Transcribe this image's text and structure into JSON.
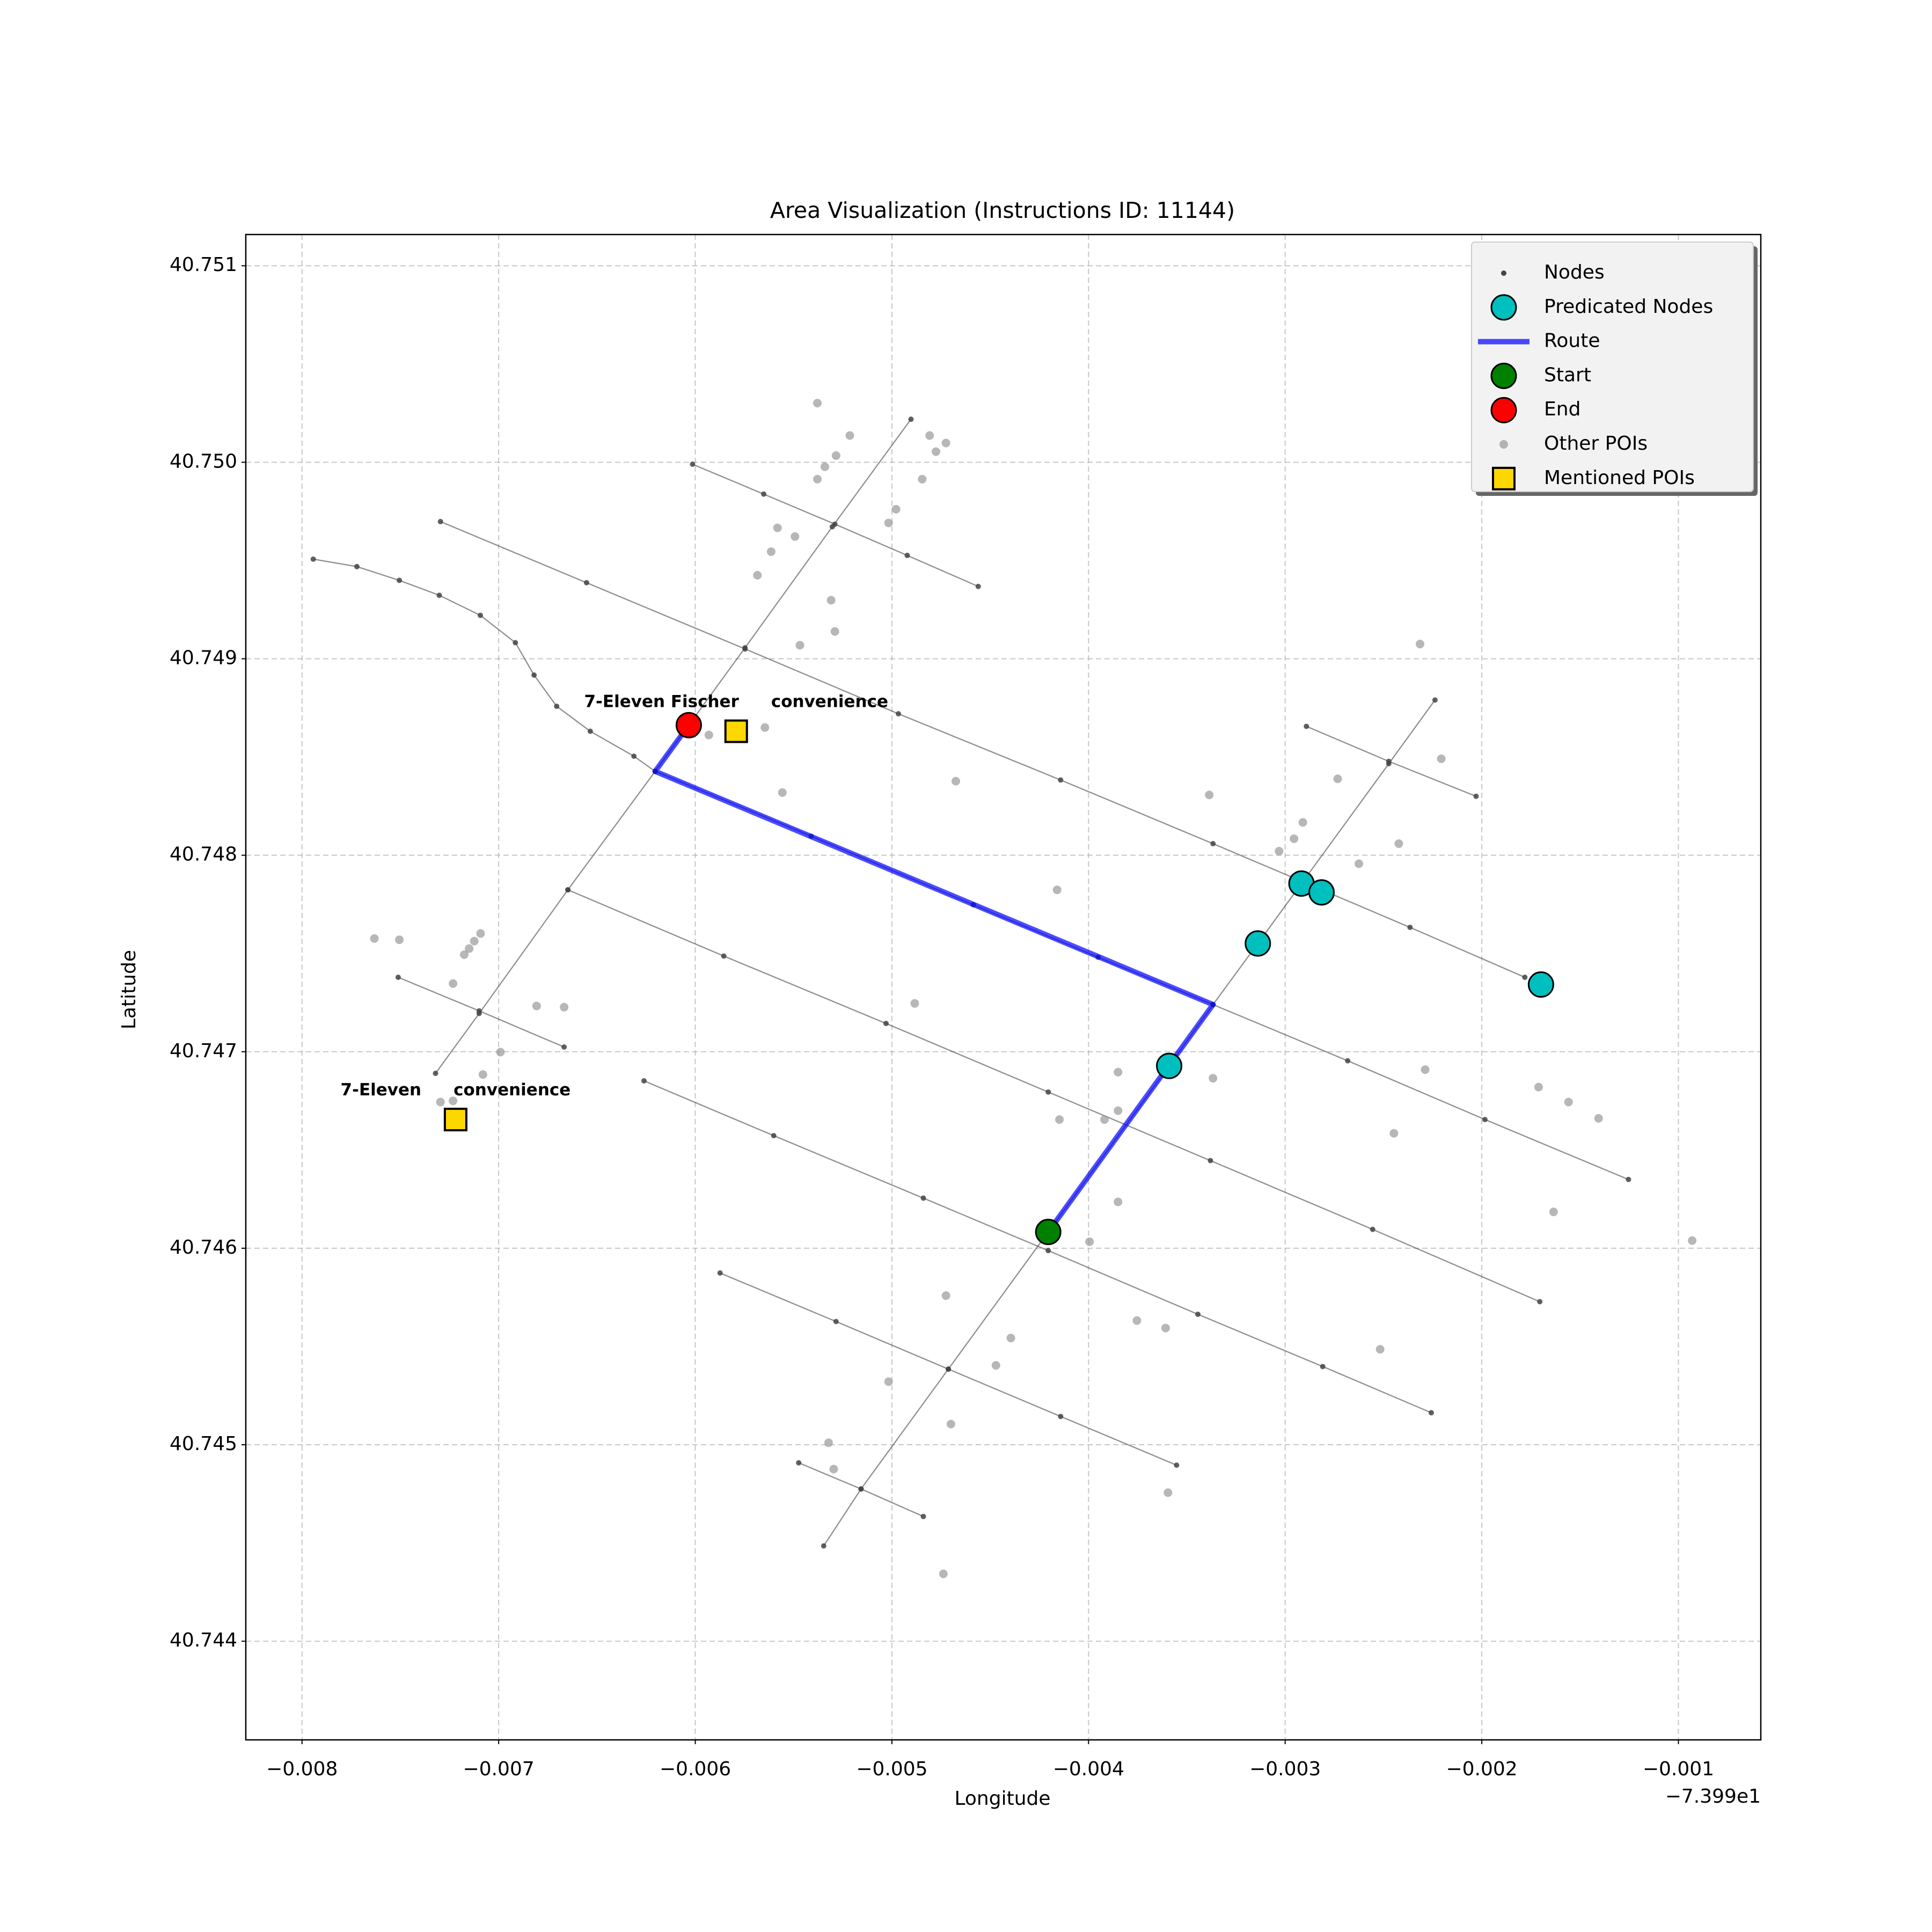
{
  "chart_data": {
    "type": "map",
    "title": "Area Visualization (Instructions ID: 11144)",
    "xlabel": "Longitude",
    "ylabel": "Latitude",
    "x_offset_label": "−7.399e1",
    "xlim": [
      -0.008286,
      -0.000581
    ],
    "ylim": [
      40.743498,
      40.751159
    ],
    "xticks": [
      {
        "value": -0.008,
        "label": "−0.008"
      },
      {
        "value": -0.007,
        "label": "−0.007"
      },
      {
        "value": -0.006,
        "label": "−0.006"
      },
      {
        "value": -0.005,
        "label": "−0.005"
      },
      {
        "value": -0.004,
        "label": "−0.004"
      },
      {
        "value": -0.003,
        "label": "−0.003"
      },
      {
        "value": -0.002,
        "label": "−0.002"
      },
      {
        "value": -0.001,
        "label": "−0.001"
      }
    ],
    "yticks": [
      40.744,
      40.745,
      40.746,
      40.747,
      40.748,
      40.749,
      {
        "value": 40.75,
        "label": "40.750"
      },
      40.751
    ],
    "grid": true,
    "legend": "upper right",
    "nodes": {
      "name": "Nodes",
      "color": "#444444",
      "streets": [
        {
          "x": [
            -0.007943,
            -0.007721,
            -0.007505,
            -0.007302,
            -0.007093,
            -0.006915,
            -0.00682,
            -0.006705,
            -0.006534,
            -0.006312,
            -0.006204
          ],
          "y": [
            40.749507,
            40.749469,
            40.749399,
            40.749323,
            40.749221,
            40.749082,
            40.748917,
            40.748758,
            40.748631,
            40.748504,
            40.748427
          ]
        },
        {
          "x": [
            -0.007321,
            -0.007099,
            -0.006648,
            -0.006204,
            -0.005747,
            -0.005303,
            -0.004903
          ],
          "y": [
            40.74689,
            40.747195,
            40.747824,
            40.748427,
            40.749056,
            40.749672,
            40.750219
          ]
        },
        {
          "x": [
            -0.005347,
            -0.005157,
            -0.004713,
            -0.004205,
            -0.00359,
            -0.003367,
            -0.003139,
            -0.002917,
            -0.002473,
            -0.002238
          ],
          "y": [
            40.744485,
            40.744775,
            40.745385,
            40.746083,
            40.746928,
            40.74724,
            40.747551,
            40.747856,
            40.748466,
            40.74879
          ]
        },
        {
          "x": [
            -0.006014,
            -0.005652,
            -0.00529,
            -0.004922,
            -0.004561
          ],
          "y": [
            40.74999,
            40.749838,
            40.749685,
            40.749526,
            40.749368
          ]
        },
        {
          "x": [
            -0.007296,
            -0.006553,
            -0.005747,
            -0.004967,
            -0.004142,
            -0.003367,
            -0.002917,
            -0.002365,
            -0.001781
          ],
          "y": [
            40.749698,
            40.749387,
            40.74905,
            40.74872,
            40.748383,
            40.748059,
            40.747868,
            40.747633,
            40.747379
          ]
        },
        {
          "x": [
            -0.007511,
            -0.007099,
            -0.006667
          ],
          "y": [
            40.747379,
            40.747208,
            40.747024
          ]
        },
        {
          "x": [
            -0.006204,
            -0.005411,
            -0.004586,
            -0.003951,
            -0.003367,
            -0.002682,
            -0.001984,
            -0.001254
          ],
          "y": [
            40.748427,
            40.748097,
            40.747748,
            40.747481,
            40.74724,
            40.746954,
            40.746655,
            40.74635
          ]
        },
        {
          "x": [
            -0.006648,
            -0.005855,
            -0.00503,
            -0.004205,
            -0.00338,
            -0.002555,
            -0.001705
          ],
          "y": [
            40.747824,
            40.747487,
            40.747144,
            40.746795,
            40.746446,
            40.746096,
            40.745728
          ]
        },
        {
          "x": [
            -0.006261,
            -0.005601,
            -0.00484,
            -0.004205,
            -0.003444,
            -0.002809,
            -0.002257
          ],
          "y": [
            40.746852,
            40.746573,
            40.746255,
            40.745988,
            40.745664,
            40.745398,
            40.745163
          ]
        },
        {
          "x": [
            -0.005874,
            -0.005284,
            -0.004713,
            -0.004142,
            -0.003552
          ],
          "y": [
            40.745874,
            40.745627,
            40.745385,
            40.745144,
            40.744896
          ]
        },
        {
          "x": [
            -0.005474,
            -0.005157,
            -0.00484
          ],
          "y": [
            40.744908,
            40.744775,
            40.744635
          ]
        },
        {
          "x": [
            -0.002892,
            -0.002473,
            -0.002029
          ],
          "y": [
            40.748656,
            40.748478,
            40.7483
          ]
        }
      ]
    },
    "predicted_nodes": {
      "name": "Predicated Nodes",
      "color": "#00bfbf",
      "x": [
        -0.00359,
        -0.003139,
        -0.002917,
        -0.002815,
        -0.001699
      ],
      "y": [
        40.746928,
        40.747551,
        40.747856,
        40.747811,
        40.747342
      ]
    },
    "route": {
      "name": "Route",
      "color": "#0000ff",
      "x": [
        -0.004205,
        -0.003367,
        -0.006204,
        -0.006033
      ],
      "y": [
        40.746083,
        40.74724,
        40.748427,
        40.748662
      ]
    },
    "start": {
      "name": "Start",
      "color": "#008000",
      "x": -0.004205,
      "y": 40.746083
    },
    "end": {
      "name": "End",
      "color": "#ff0000",
      "x": -0.006033,
      "y": 40.748662
    },
    "other_pois": {
      "name": "Other POIs",
      "color": "#999999",
      "x": [
        -0.005379,
        -0.005214,
        -0.004808,
        -0.004725,
        -0.004776,
        -0.005284,
        -0.005341,
        -0.005379,
        -0.004846,
        -0.004979,
        -0.005017,
        -0.005582,
        -0.005493,
        -0.005614,
        -0.005684,
        -0.005309,
        -0.00529,
        -0.005468,
        -0.005931,
        -0.005646,
        -0.005557,
        -0.004675,
        -0.002314,
        -0.002206,
        -0.002733,
        -0.003386,
        -0.002422,
        -0.00291,
        -0.003031,
        -0.002955,
        -0.002625,
        -0.00416,
        -0.007632,
        -0.007505,
        -0.007092,
        -0.007124,
        -0.00715,
        -0.007175,
        -0.007232,
        -0.006807,
        -0.006667,
        -0.006991,
        -0.00708,
        -0.004884,
        -0.00385,
        -0.003608,
        -0.003367,
        -0.002288,
        -0.001711,
        -0.001559,
        -0.001406,
        -0.004148,
        -0.003919,
        -0.00385,
        -0.002447,
        -0.00385,
        -0.003995,
        -0.001635,
        -0.00093,
        -0.004725,
        -0.003754,
        -0.003608,
        -0.004395,
        -0.004471,
        -0.002517,
        -0.005017,
        -0.0047,
        -0.005322,
        -0.005296,
        -0.003596,
        -0.004738,
        -0.007296,
        -0.007232
      ],
      "y": [
        40.750301,
        40.750136,
        40.750136,
        40.750098,
        40.750054,
        40.750034,
        40.749977,
        40.749914,
        40.749914,
        40.749761,
        40.749691,
        40.749666,
        40.749622,
        40.749545,
        40.749425,
        40.749298,
        40.749139,
        40.749069,
        40.748612,
        40.74865,
        40.748319,
        40.748377,
        40.749075,
        40.748491,
        40.748389,
        40.748307,
        40.748059,
        40.748167,
        40.748021,
        40.748084,
        40.747957,
        40.747824,
        40.747576,
        40.74757,
        40.747602,
        40.747563,
        40.747525,
        40.747494,
        40.747347,
        40.747233,
        40.747227,
        40.746998,
        40.746884,
        40.747246,
        40.746896,
        40.746935,
        40.746865,
        40.746909,
        40.74682,
        40.746744,
        40.746661,
        40.746655,
        40.746655,
        40.7467,
        40.746585,
        40.746236,
        40.746033,
        40.746185,
        40.746039,
        40.745759,
        40.745632,
        40.745594,
        40.745543,
        40.745404,
        40.745486,
        40.745321,
        40.745105,
        40.74501,
        40.744876,
        40.744756,
        40.744343,
        40.746744,
        40.74675
      ]
    },
    "mentioned_pois": {
      "name": "Mentioned POIs",
      "color": "#ffd700",
      "label_color": "#b8860b",
      "x": [
        -0.005792,
        -0.007219
      ],
      "y": [
        40.748631,
        40.746655
      ],
      "labels": [
        {
          "name": "7-Eleven Fischer",
          "category": "convenience"
        },
        {
          "name": "7-Eleven",
          "category": "convenience"
        }
      ]
    }
  }
}
